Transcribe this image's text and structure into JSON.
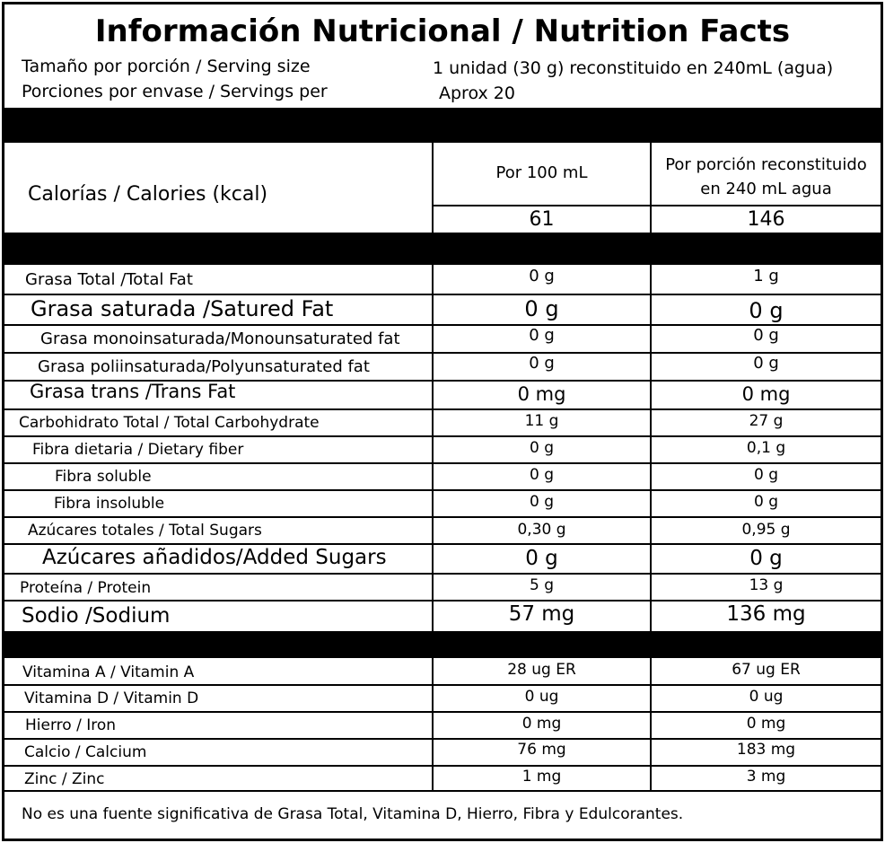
{
  "title": "Información Nutricional / Nutrition Facts",
  "serving": {
    "size_label": "Tamaño por porción / Serving size",
    "size_value": "1 unidad (30 g) reconstituido en 240mL (agua)",
    "per_label": "Porciones por envase / Servings per",
    "per_value": "Aprox 20"
  },
  "columns": {
    "per100": "Por 100 mL",
    "perportion_line1": "Por porción reconstituido",
    "perportion_line2": "en 240 mL agua"
  },
  "calories": {
    "label": "Calorías / Calories (kcal)",
    "per100": "61",
    "perportion": "146"
  },
  "nutrients": [
    {
      "label": "Grasa Total /Total Fat",
      "per100": "0 g",
      "perportion": "1 g"
    },
    {
      "label": "Grasa saturada /Satured Fat",
      "per100": "0 g",
      "perportion": "0 g"
    },
    {
      "label": "Grasa monoinsaturada/Monounsaturated fat",
      "per100": "0 g",
      "perportion": "0 g"
    },
    {
      "label": "Grasa poliinsaturada/Polyunsaturated fat",
      "per100": "0 g",
      "perportion": "0 g"
    },
    {
      "label": "Grasa trans /Trans Fat",
      "per100": "0 mg",
      "perportion": "0 mg"
    },
    {
      "label": "Carbohidrato Total / Total Carbohydrate",
      "per100": "11 g",
      "perportion": "27 g"
    },
    {
      "label": "Fibra dietaria / Dietary fiber",
      "per100": "0 g",
      "perportion": "0,1 g"
    },
    {
      "label": "Fibra soluble",
      "per100": "0 g",
      "perportion": "0 g"
    },
    {
      "label": "Fibra insoluble",
      "per100": "0 g",
      "perportion": "0 g"
    },
    {
      "label": "Azúcares totales / Total Sugars",
      "per100": "0,30 g",
      "perportion": "0,95 g"
    },
    {
      "label": "Azúcares añadidos/Added Sugars",
      "per100": "0 g",
      "perportion": "0 g"
    },
    {
      "label": "Proteína / Protein",
      "per100": "5 g",
      "perportion": "13 g"
    },
    {
      "label": "Sodio /Sodium",
      "per100": "57 mg",
      "perportion": "136 mg"
    }
  ],
  "vitamins": [
    {
      "label": "Vitamina A / Vitamin A",
      "per100": "28 ug ER",
      "perportion": "67 ug ER"
    },
    {
      "label": "Vitamina D  / Vitamin D",
      "per100": "0 ug",
      "perportion": "0 ug"
    },
    {
      "label": "Hierro / Iron",
      "per100": "0 mg",
      "perportion": "0 mg"
    },
    {
      "label": "Calcio / Calcium",
      "per100": "76 mg",
      "perportion": "183 mg"
    },
    {
      "label": "Zinc / Zinc",
      "per100": "1 mg",
      "perportion": "3 mg"
    }
  ],
  "footnote": "No es una fuente significativa de Grasa Total, Vitamina D, Hierro, Fibra y Edulcorantes."
}
